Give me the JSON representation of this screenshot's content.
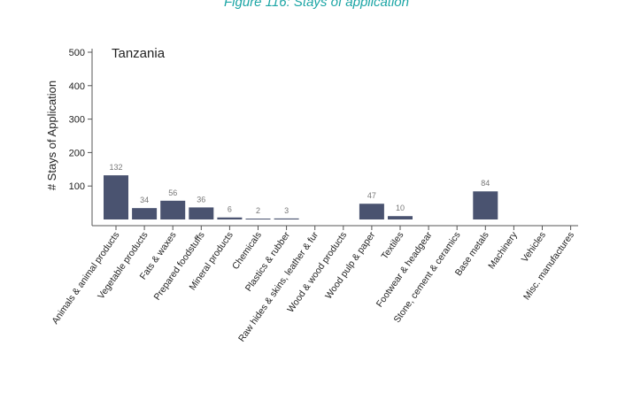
{
  "caption": "Figure 116: Stays of application",
  "chart_data": {
    "type": "bar",
    "title": "Tanzania",
    "ylabel": "# Stays of Application",
    "xlabel": "",
    "ylim": [
      0,
      520
    ],
    "yticks": [
      100,
      200,
      300,
      400,
      500
    ],
    "grid": false,
    "categories": [
      "Animals & animal products",
      "Vegetable products",
      "Fats & waxes",
      "Prepared foodstuffs",
      "Mineral products",
      "Chemicals",
      "Plastics & rubber",
      "Raw hides & skins, leather & fur",
      "Wood & wood products",
      "Wood pulp & paper",
      "Textiles",
      "Footwear & headgear",
      "Stone, cement & ceramics",
      "Base metals",
      "Machinery",
      "Vehicles",
      "Misc. manufactures"
    ],
    "values": [
      132,
      34,
      56,
      36,
      6,
      2,
      3,
      0,
      0,
      47,
      10,
      0,
      0,
      84,
      0,
      0,
      0
    ],
    "data_labels": [
      "132",
      "34",
      "56",
      "36",
      "6",
      "2",
      "3",
      "",
      "",
      "47",
      "10",
      "",
      "",
      "84",
      "",
      "",
      ""
    ],
    "bar_color": "#4a5370"
  }
}
